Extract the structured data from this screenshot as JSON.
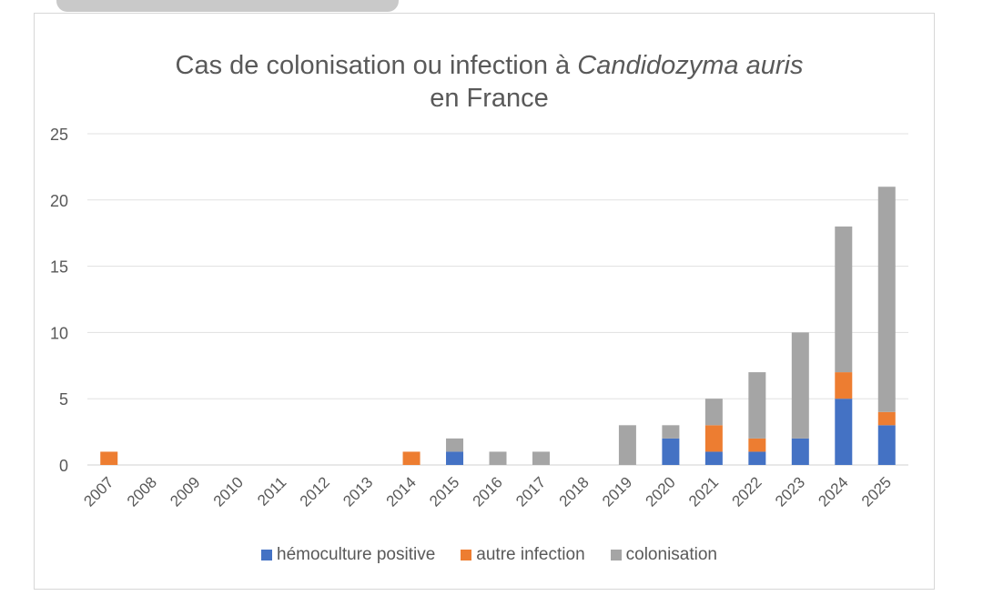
{
  "chart_data": {
    "type": "bar",
    "stacked": true,
    "title_line1_prefix": "Cas de colonisation ou infection à ",
    "title_line1_italic": "Candidozyma auris",
    "title_line2": "en France",
    "xlabel": "",
    "ylabel": "",
    "ylim": [
      0,
      25
    ],
    "yticks": [
      0,
      5,
      10,
      15,
      20,
      25
    ],
    "grid": true,
    "legend_position": "bottom",
    "categories": [
      "2007",
      "2008",
      "2009",
      "2010",
      "2011",
      "2012",
      "2013",
      "2014",
      "2015",
      "2016",
      "2017",
      "2018",
      "2019",
      "2020",
      "2021",
      "2022",
      "2023",
      "2024",
      "2025"
    ],
    "series": [
      {
        "name": "hémoculture positive",
        "color": "#4472c4",
        "values": [
          0,
          0,
          0,
          0,
          0,
          0,
          0,
          0,
          1,
          0,
          0,
          0,
          0,
          2,
          1,
          1,
          2,
          5,
          3
        ]
      },
      {
        "name": "autre infection",
        "color": "#ed7d31",
        "values": [
          1,
          0,
          0,
          0,
          0,
          0,
          0,
          1,
          0,
          0,
          0,
          0,
          0,
          0,
          2,
          1,
          0,
          2,
          1
        ]
      },
      {
        "name": "colonisation",
        "color": "#a5a5a5",
        "values": [
          0,
          0,
          0,
          0,
          0,
          0,
          0,
          0,
          1,
          1,
          1,
          0,
          3,
          1,
          2,
          5,
          8,
          11,
          17
        ]
      }
    ]
  }
}
